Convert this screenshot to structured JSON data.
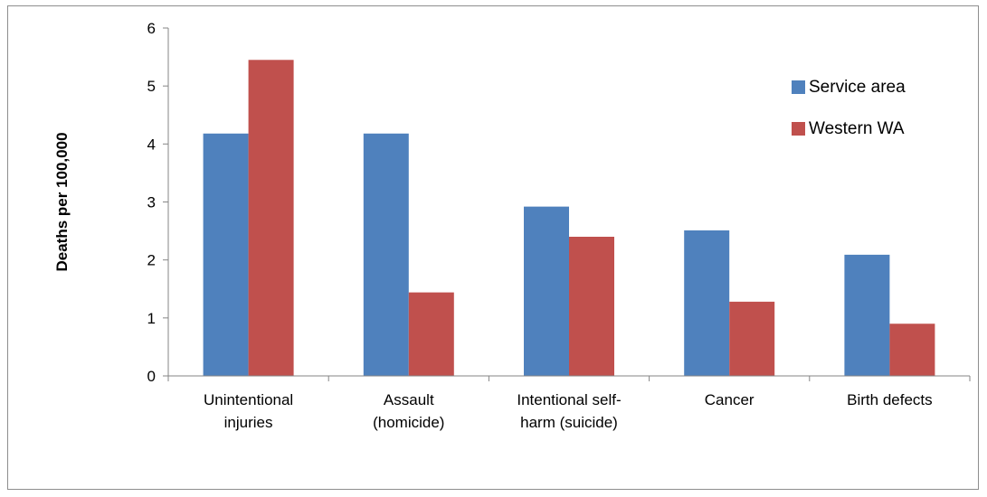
{
  "chart_data": {
    "type": "bar",
    "title": "",
    "xlabel": "",
    "ylabel": "Deaths per 100,000",
    "ylim": [
      0,
      6
    ],
    "yticks": [
      0,
      1,
      2,
      3,
      4,
      5,
      6
    ],
    "grid": false,
    "legend_position": "right",
    "categories": [
      [
        "Unintentional",
        "injuries"
      ],
      [
        "Assault",
        "(homicide)"
      ],
      [
        "Intentional self-",
        "harm (suicide)"
      ],
      [
        "Cancer"
      ],
      [
        "Birth defects"
      ]
    ],
    "series": [
      {
        "name": "Service area",
        "color": "#4f81bd",
        "values": [
          4.18,
          4.18,
          2.92,
          2.51,
          2.09
        ]
      },
      {
        "name": "Western WA",
        "color": "#c0504d",
        "values": [
          5.45,
          1.44,
          2.4,
          1.28,
          0.9
        ]
      }
    ],
    "axis_color": "#868686"
  }
}
